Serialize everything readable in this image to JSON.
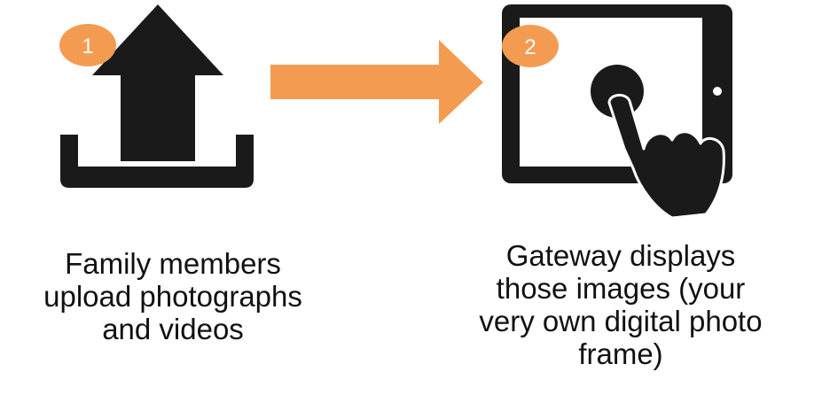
{
  "steps": [
    {
      "number": "1",
      "icon": "upload-icon",
      "caption_lines": [
        "Family members",
        "upload photographs",
        "and videos"
      ]
    },
    {
      "number": "2",
      "icon": "tablet-touch-icon",
      "caption_lines": [
        "Gateway displays",
        "those images (your",
        "very own digital photo",
        "frame)"
      ]
    }
  ],
  "colors": {
    "accent": "#f39c51",
    "icon": "#1a1a1a",
    "badge_text": "#ffffff",
    "text": "#111111"
  }
}
